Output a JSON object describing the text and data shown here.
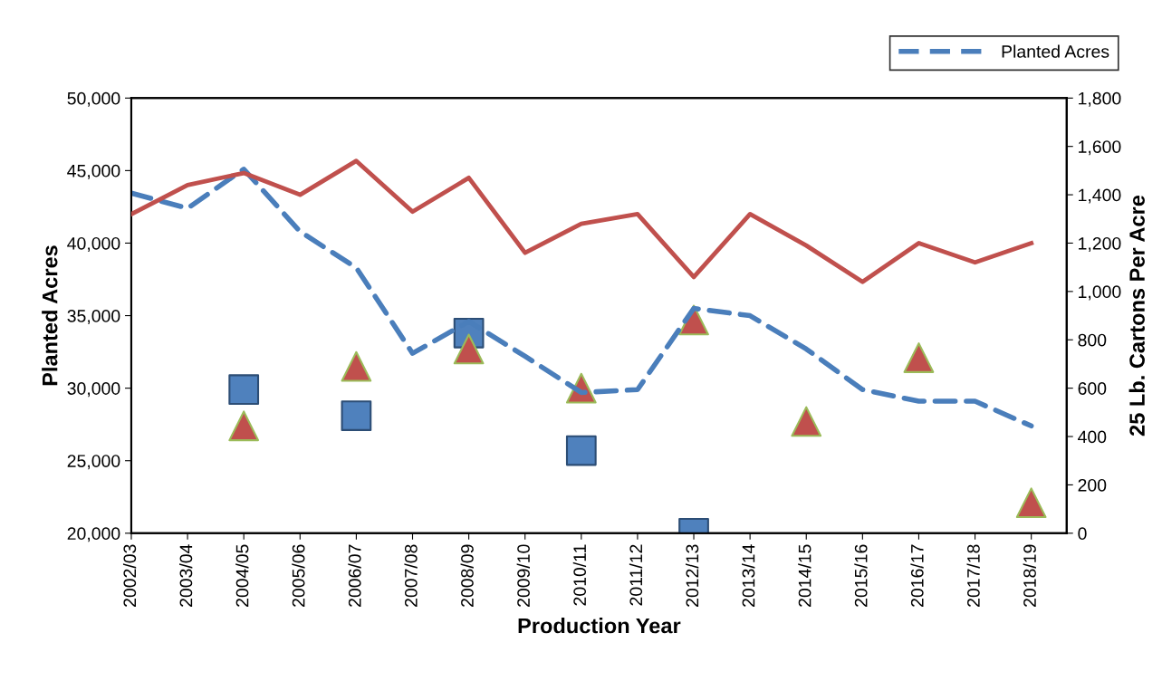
{
  "chart_data": {
    "type": "line",
    "xlabel": "Production Year",
    "ylabel": "Planted Acres",
    "y2label": "25 Lb. Cartons Per Acre",
    "categories": [
      "2002/03",
      "2003/04",
      "2004/05",
      "2005/06",
      "2006/07",
      "2007/08",
      "2008/09",
      "2009/10",
      "2010/11",
      "2011/12",
      "2012/13",
      "2013/14",
      "2014/15",
      "2015/16",
      "2016/17",
      "2017/18",
      "2018/19"
    ],
    "series": [
      {
        "name": "Planted Acres",
        "color": "#4a7ebb",
        "line_style": "dashed",
        "values": [
          43450,
          42400,
          45100,
          40800,
          38300,
          32400,
          34600,
          32200,
          29700,
          29900,
          35500,
          35000,
          32700,
          29900,
          29100,
          29100,
          27400
        ]
      },
      {
        "axis": "y2",
        "color": "#c0504d",
        "line_style": "solid",
        "values": [
          1320,
          1440,
          1490,
          1400,
          1540,
          1330,
          1470,
          1160,
          1280,
          1320,
          1060,
          1320,
          1190,
          1040,
          1200,
          1120,
          1200
        ]
      },
      {
        "type": "scatter",
        "marker": "square",
        "color": "#4f81bd",
        "x": [
          "2004/05",
          "2006/07",
          "2008/09",
          "2010/11",
          "2012/13"
        ],
        "values": [
          29900,
          28100,
          33800,
          25700,
          20000
        ]
      },
      {
        "type": "scatter",
        "marker": "triangle",
        "color": "#c0504d",
        "x": [
          "2004/05",
          "2006/07",
          "2008/09",
          "2010/11",
          "2012/13",
          "2014/15",
          "2016/17",
          "2018/19"
        ],
        "values": [
          27400,
          31500,
          32700,
          30000,
          34700,
          27700,
          32100,
          22100
        ]
      }
    ],
    "ylim": [
      20000,
      50000
    ],
    "yticks": [
      {
        "value": 20000,
        "label": "20,000"
      },
      {
        "value": 25000,
        "label": "25,000"
      },
      {
        "value": 30000,
        "label": "30,000"
      },
      {
        "value": 35000,
        "label": "35,000"
      },
      {
        "value": 40000,
        "label": "40,000"
      },
      {
        "value": 45000,
        "label": "45,000"
      },
      {
        "value": 50000,
        "label": "50,000"
      }
    ],
    "y2lim": [
      0,
      1800
    ],
    "y2ticks": [
      0,
      200,
      400,
      600,
      800,
      {
        "value": 1000,
        "label": "1,000"
      },
      {
        "value": 1200,
        "label": "1,200"
      },
      {
        "value": 1400,
        "label": "1,400"
      },
      {
        "value": 1600,
        "label": "1,600"
      },
      {
        "value": 1800,
        "label": "1,800"
      }
    ],
    "grid": false,
    "legend": "top right"
  }
}
